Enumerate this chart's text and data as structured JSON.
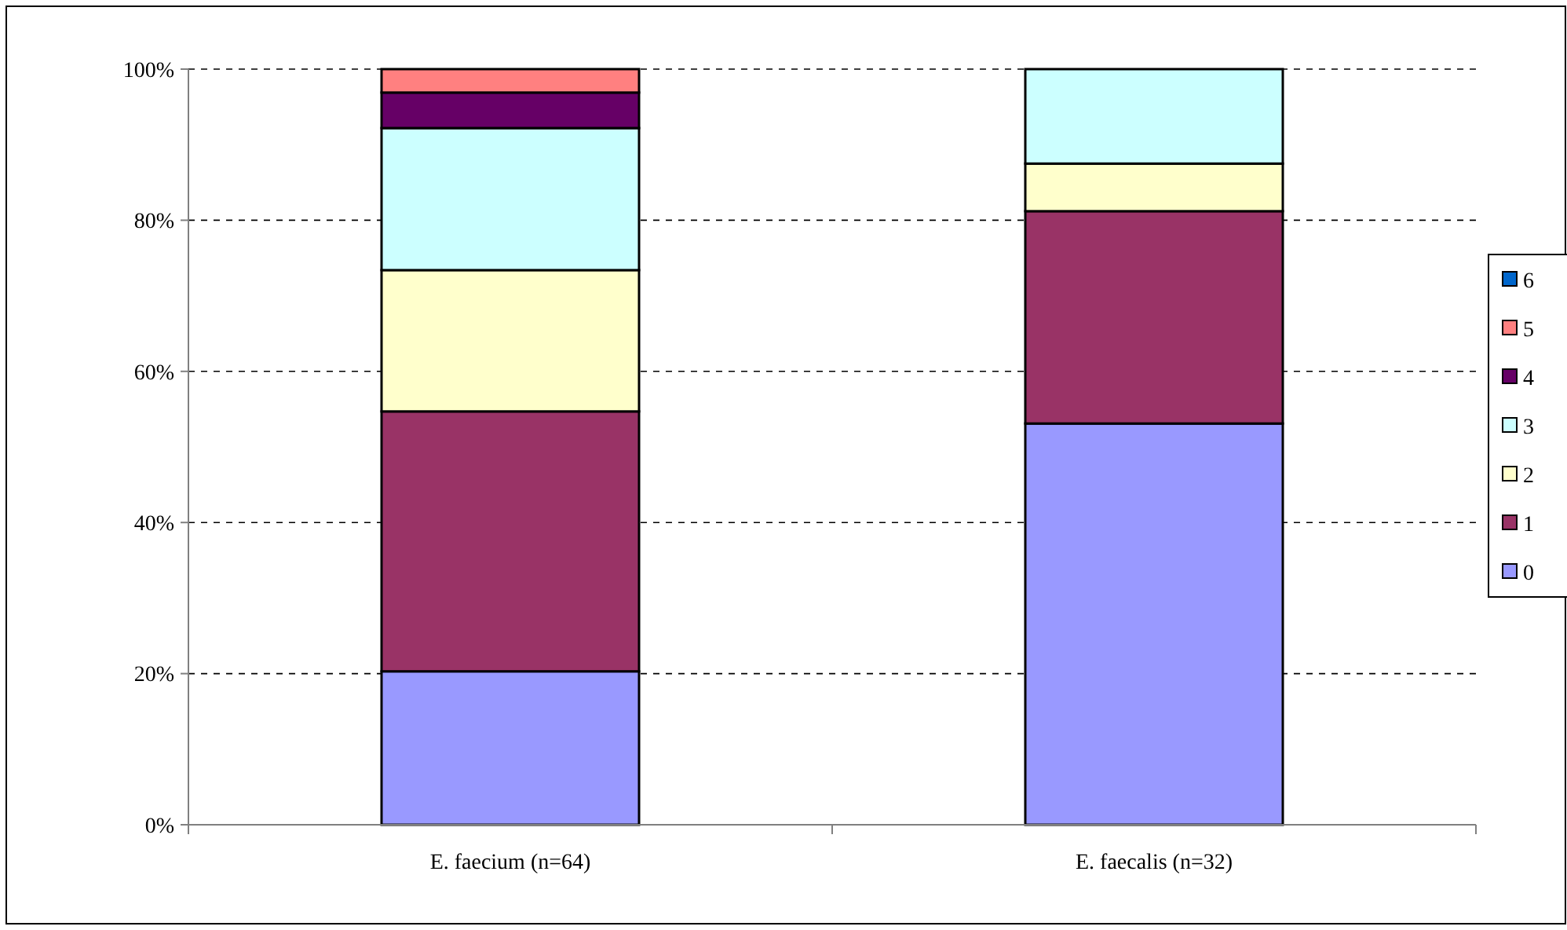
{
  "chart_data": {
    "type": "bar",
    "stacked": true,
    "categories": [
      "E. faecium (n=64)",
      "E. faecalis (n=32)"
    ],
    "series": [
      {
        "name": "0",
        "color": "#9999ff",
        "values": [
          20.3,
          53.1
        ]
      },
      {
        "name": "1",
        "color": "#993366",
        "values": [
          34.4,
          28.1
        ]
      },
      {
        "name": "2",
        "color": "#ffffcc",
        "values": [
          18.7,
          6.3
        ]
      },
      {
        "name": "3",
        "color": "#ccffff",
        "values": [
          18.8,
          12.5
        ]
      },
      {
        "name": "4",
        "color": "#660066",
        "values": [
          4.7,
          0
        ]
      },
      {
        "name": "5",
        "color": "#ff8080",
        "values": [
          3.1,
          0
        ]
      },
      {
        "name": "6",
        "color": "#0066cc",
        "values": [
          0,
          0
        ]
      }
    ],
    "ylim": [
      0,
      100
    ],
    "yticks": [
      {
        "value": 0,
        "label": "0%"
      },
      {
        "value": 20,
        "label": "20%"
      },
      {
        "value": 40,
        "label": "40%"
      },
      {
        "value": 60,
        "label": "60%"
      },
      {
        "value": 80,
        "label": "80%"
      },
      {
        "value": 100,
        "label": "100%"
      }
    ],
    "grid": "y",
    "legend": "right"
  }
}
